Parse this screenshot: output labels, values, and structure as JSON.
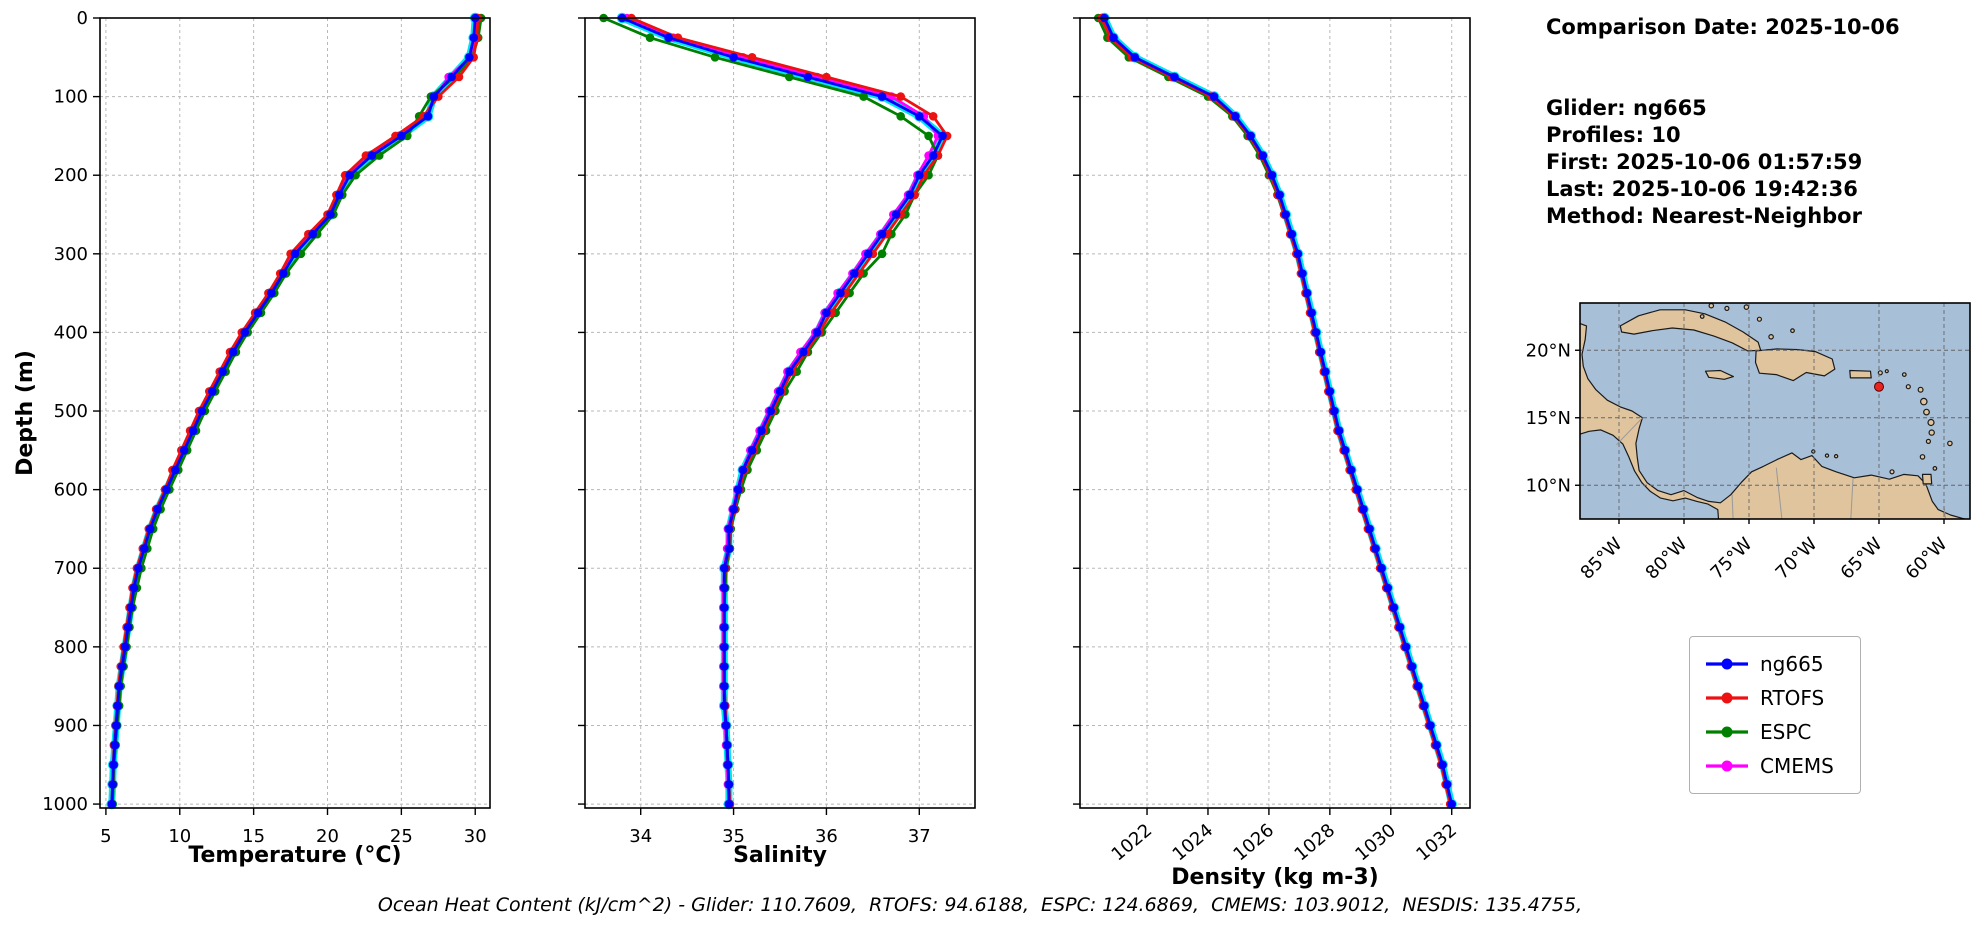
{
  "info": {
    "comparison_date": "Comparison Date: 2025-10-06",
    "glider": "Glider: ng665",
    "profiles": "Profiles: 10",
    "first": "First: 2025-10-06 01:57:59",
    "last": "Last: 2025-10-06 19:42:36",
    "method": "Method: Nearest-Neighbor"
  },
  "footer": {
    "ohc_line": "Ocean Heat Content (kJ/cm^2) - Glider: 110.7609,  RTOFS: 94.6188,  ESPC: 124.6869,  CMEMS: 103.9012,  NESDIS: 135.4755,"
  },
  "legend": {
    "entries": [
      {
        "label": "ng665",
        "color": "#0000ff"
      },
      {
        "label": "RTOFS",
        "color": "#ee1111"
      },
      {
        "label": "ESPC",
        "color": "#008000"
      },
      {
        "label": "CMEMS",
        "color": "#ff00ff"
      }
    ]
  },
  "map": {
    "extent": {
      "lon_min": -88,
      "lon_max": -58,
      "lat_min": 7.5,
      "lat_max": 23.5
    },
    "lat_ticks": [
      {
        "label": "20°N",
        "lat": 20
      },
      {
        "label": "15°N",
        "lat": 15
      },
      {
        "label": "10°N",
        "lat": 10
      }
    ],
    "lon_ticks": [
      {
        "label": "85°W",
        "lon": -85
      },
      {
        "label": "80°W",
        "lon": -80
      },
      {
        "label": "75°W",
        "lon": -75
      },
      {
        "label": "70°W",
        "lon": -70
      },
      {
        "label": "65°W",
        "lon": -65
      },
      {
        "label": "60°W",
        "lon": -60
      }
    ],
    "ocean_color": "#a8bfd8",
    "land_color": "#dfc49e",
    "coast_color": "#1a1a1a",
    "glider_marker": {
      "lon": -65.0,
      "lat": 17.3,
      "color": "#e8251f"
    }
  },
  "chart_data": [
    {
      "type": "line",
      "xlabel": "Temperature (°C)",
      "ylabel": "Depth (m)",
      "xlim": [
        4.6,
        31.0
      ],
      "ylim": [
        0,
        1005
      ],
      "y_inverted": true,
      "grid": true,
      "xticks": [
        5,
        10,
        15,
        20,
        25,
        30
      ],
      "yticks": [
        0,
        100,
        200,
        300,
        400,
        500,
        600,
        700,
        800,
        900,
        1000
      ],
      "depths": [
        0,
        25,
        50,
        75,
        100,
        125,
        150,
        175,
        200,
        225,
        250,
        275,
        300,
        325,
        350,
        375,
        400,
        425,
        450,
        475,
        500,
        525,
        550,
        575,
        600,
        625,
        650,
        675,
        700,
        725,
        750,
        775,
        800,
        825,
        850,
        875,
        900,
        925,
        950,
        975,
        1000
      ],
      "raw_overlay": {
        "name": "glider-raw",
        "color": "#00e5ee"
      },
      "series": [
        {
          "name": "ng665",
          "color": "#0000ff",
          "values": [
            30.0,
            29.9,
            29.6,
            28.4,
            27.2,
            26.8,
            25.0,
            23.0,
            21.5,
            20.8,
            20.2,
            19.0,
            17.8,
            17.0,
            16.2,
            15.3,
            14.4,
            13.6,
            12.9,
            12.2,
            11.5,
            10.9,
            10.3,
            9.7,
            9.1,
            8.5,
            8.0,
            7.6,
            7.2,
            6.9,
            6.7,
            6.5,
            6.3,
            6.1,
            5.9,
            5.8,
            5.7,
            5.6,
            5.5,
            5.45,
            5.4
          ]
        },
        {
          "name": "RTOFS",
          "color": "#ee1111",
          "values": [
            30.2,
            30.1,
            29.9,
            28.9,
            27.5,
            26.5,
            24.6,
            22.6,
            21.2,
            20.6,
            20.0,
            18.7,
            17.5,
            16.8,
            16.0,
            15.1,
            14.2,
            13.4,
            12.7,
            12.0,
            11.3,
            10.7,
            10.1,
            9.5,
            9.0,
            8.4,
            7.9,
            7.5,
            7.1,
            6.8,
            6.6,
            6.4,
            6.2,
            6.0,
            5.85,
            5.75,
            5.65,
            5.55,
            5.5,
            5.45,
            5.4
          ]
        },
        {
          "name": "ESPC",
          "color": "#008000",
          "values": [
            30.4,
            30.2,
            29.8,
            28.6,
            27.0,
            26.2,
            25.4,
            23.5,
            21.9,
            21.0,
            20.4,
            19.3,
            18.2,
            17.2,
            16.4,
            15.5,
            14.6,
            13.8,
            13.1,
            12.4,
            11.7,
            11.1,
            10.5,
            9.9,
            9.3,
            8.7,
            8.2,
            7.8,
            7.4,
            7.1,
            6.8,
            6.6,
            6.4,
            6.2,
            6.0,
            5.9,
            5.75,
            5.65,
            5.55,
            5.5,
            5.45
          ]
        },
        {
          "name": "CMEMS",
          "color": "#ff00ff",
          "values": [
            30.1,
            30.0,
            29.7,
            28.2,
            27.3,
            26.6,
            24.8,
            22.8,
            21.4,
            20.7,
            20.1,
            18.9,
            17.7,
            16.9,
            16.1,
            15.2,
            14.3,
            13.5,
            12.8,
            12.1,
            11.4,
            10.8,
            10.2,
            9.6,
            9.05,
            8.45,
            7.95,
            7.55,
            7.15,
            6.85,
            6.65,
            6.45,
            6.25,
            6.05,
            5.88,
            5.78,
            5.68,
            5.58,
            5.52,
            5.47,
            5.42
          ]
        }
      ]
    },
    {
      "type": "line",
      "xlabel": "Salinity",
      "ylabel": "",
      "xlim": [
        33.4,
        37.6
      ],
      "ylim": [
        0,
        1005
      ],
      "y_inverted": true,
      "grid": true,
      "xticks": [
        34,
        35,
        36,
        37
      ],
      "yticks": [
        0,
        100,
        200,
        300,
        400,
        500,
        600,
        700,
        800,
        900,
        1000
      ],
      "depths": [
        0,
        25,
        50,
        75,
        100,
        125,
        150,
        175,
        200,
        225,
        250,
        275,
        300,
        325,
        350,
        375,
        400,
        425,
        450,
        475,
        500,
        525,
        550,
        575,
        600,
        625,
        650,
        675,
        700,
        725,
        750,
        775,
        800,
        825,
        850,
        875,
        900,
        925,
        950,
        975,
        1000
      ],
      "raw_overlay": {
        "name": "glider-raw",
        "color": "#00e5ee"
      },
      "series": [
        {
          "name": "ng665",
          "color": "#0000ff",
          "values": [
            33.8,
            34.3,
            35.0,
            35.8,
            36.6,
            37.0,
            37.25,
            37.15,
            37.0,
            36.9,
            36.75,
            36.6,
            36.45,
            36.3,
            36.15,
            36.0,
            35.9,
            35.75,
            35.6,
            35.5,
            35.4,
            35.3,
            35.2,
            35.1,
            35.05,
            35.0,
            34.95,
            34.95,
            34.9,
            34.9,
            34.9,
            34.9,
            34.9,
            34.9,
            34.9,
            34.9,
            34.92,
            34.93,
            34.94,
            34.95,
            34.95
          ]
        },
        {
          "name": "RTOFS",
          "color": "#ee1111",
          "values": [
            33.9,
            34.4,
            35.2,
            36.0,
            36.8,
            37.15,
            37.3,
            37.2,
            37.05,
            36.95,
            36.8,
            36.65,
            36.5,
            36.35,
            36.2,
            36.05,
            35.92,
            35.78,
            35.63,
            35.52,
            35.42,
            35.32,
            35.22,
            35.12,
            35.06,
            35.01,
            34.96,
            34.95,
            34.91,
            34.9,
            34.9,
            34.9,
            34.9,
            34.9,
            34.9,
            34.91,
            34.92,
            34.93,
            34.94,
            34.95,
            34.96
          ]
        },
        {
          "name": "ESPC",
          "color": "#008000",
          "values": [
            33.6,
            34.1,
            34.8,
            35.6,
            36.4,
            36.8,
            37.1,
            37.2,
            37.1,
            36.95,
            36.85,
            36.7,
            36.6,
            36.4,
            36.25,
            36.1,
            35.95,
            35.8,
            35.68,
            35.55,
            35.45,
            35.35,
            35.25,
            35.15,
            35.08,
            35.02,
            34.97,
            34.96,
            34.92,
            34.91,
            34.9,
            34.9,
            34.9,
            34.9,
            34.9,
            34.91,
            34.92,
            34.93,
            34.94,
            34.95,
            34.96
          ]
        },
        {
          "name": "CMEMS",
          "color": "#ff00ff",
          "values": [
            33.85,
            34.35,
            35.1,
            35.9,
            36.7,
            37.05,
            37.2,
            37.1,
            36.98,
            36.88,
            36.72,
            36.58,
            36.42,
            36.28,
            36.12,
            35.98,
            35.88,
            35.72,
            35.58,
            35.48,
            35.38,
            35.28,
            35.18,
            35.1,
            35.04,
            34.99,
            34.94,
            34.93,
            34.9,
            34.89,
            34.89,
            34.89,
            34.89,
            34.89,
            34.89,
            34.9,
            34.91,
            34.92,
            34.93,
            34.94,
            34.95
          ]
        }
      ]
    },
    {
      "type": "line",
      "xlabel": "Density (kg m-3)",
      "ylabel": "",
      "xlim": [
        1019.8,
        1032.6
      ],
      "ylim": [
        0,
        1005
      ],
      "y_inverted": true,
      "grid": true,
      "xticks": [
        1022,
        1024,
        1026,
        1028,
        1030,
        1032
      ],
      "yticks": [
        0,
        100,
        200,
        300,
        400,
        500,
        600,
        700,
        800,
        900,
        1000
      ],
      "depths": [
        0,
        25,
        50,
        75,
        100,
        125,
        150,
        175,
        200,
        225,
        250,
        275,
        300,
        325,
        350,
        375,
        400,
        425,
        450,
        475,
        500,
        525,
        550,
        575,
        600,
        625,
        650,
        675,
        700,
        725,
        750,
        775,
        800,
        825,
        850,
        875,
        900,
        925,
        950,
        975,
        1000
      ],
      "raw_overlay": {
        "name": "glider-raw",
        "color": "#00e5ee"
      },
      "series": [
        {
          "name": "ng665",
          "color": "#0000ff",
          "values": [
            1020.6,
            1020.9,
            1021.6,
            1022.9,
            1024.2,
            1024.9,
            1025.4,
            1025.8,
            1026.1,
            1026.35,
            1026.55,
            1026.75,
            1026.95,
            1027.1,
            1027.25,
            1027.4,
            1027.55,
            1027.7,
            1027.85,
            1028.0,
            1028.15,
            1028.3,
            1028.5,
            1028.7,
            1028.9,
            1029.1,
            1029.3,
            1029.5,
            1029.7,
            1029.9,
            1030.1,
            1030.3,
            1030.5,
            1030.7,
            1030.9,
            1031.1,
            1031.3,
            1031.5,
            1031.7,
            1031.85,
            1032.0
          ]
        },
        {
          "name": "RTOFS",
          "color": "#ee1111",
          "values": [
            1020.5,
            1020.8,
            1021.5,
            1022.8,
            1024.1,
            1024.85,
            1025.35,
            1025.75,
            1026.05,
            1026.3,
            1026.5,
            1026.7,
            1026.9,
            1027.05,
            1027.2,
            1027.35,
            1027.5,
            1027.65,
            1027.8,
            1027.95,
            1028.1,
            1028.25,
            1028.45,
            1028.65,
            1028.85,
            1029.05,
            1029.25,
            1029.45,
            1029.65,
            1029.85,
            1030.05,
            1030.25,
            1030.45,
            1030.65,
            1030.85,
            1031.05,
            1031.25,
            1031.45,
            1031.65,
            1031.8,
            1031.95
          ]
        },
        {
          "name": "ESPC",
          "color": "#008000",
          "values": [
            1020.4,
            1020.7,
            1021.4,
            1022.7,
            1024.0,
            1024.8,
            1025.3,
            1025.7,
            1026.0,
            1026.28,
            1026.5,
            1026.72,
            1026.92,
            1027.08,
            1027.22,
            1027.38,
            1027.52,
            1027.68,
            1027.82,
            1027.98,
            1028.12,
            1028.28,
            1028.48,
            1028.68,
            1028.88,
            1029.08,
            1029.28,
            1029.48,
            1029.68,
            1029.88,
            1030.08,
            1030.28,
            1030.48,
            1030.68,
            1030.88,
            1031.08,
            1031.28,
            1031.48,
            1031.68,
            1031.83,
            1031.98
          ]
        },
        {
          "name": "CMEMS",
          "color": "#ff00ff",
          "values": [
            1020.55,
            1020.85,
            1021.55,
            1022.85,
            1024.15,
            1024.88,
            1025.38,
            1025.78,
            1026.08,
            1026.32,
            1026.52,
            1026.73,
            1026.93,
            1027.09,
            1027.24,
            1027.39,
            1027.53,
            1027.69,
            1027.83,
            1027.99,
            1028.13,
            1028.29,
            1028.49,
            1028.69,
            1028.89,
            1029.09,
            1029.29,
            1029.49,
            1029.69,
            1029.89,
            1030.09,
            1030.29,
            1030.49,
            1030.69,
            1030.89,
            1031.09,
            1031.29,
            1031.49,
            1031.69,
            1031.84,
            1031.99
          ]
        }
      ]
    }
  ]
}
